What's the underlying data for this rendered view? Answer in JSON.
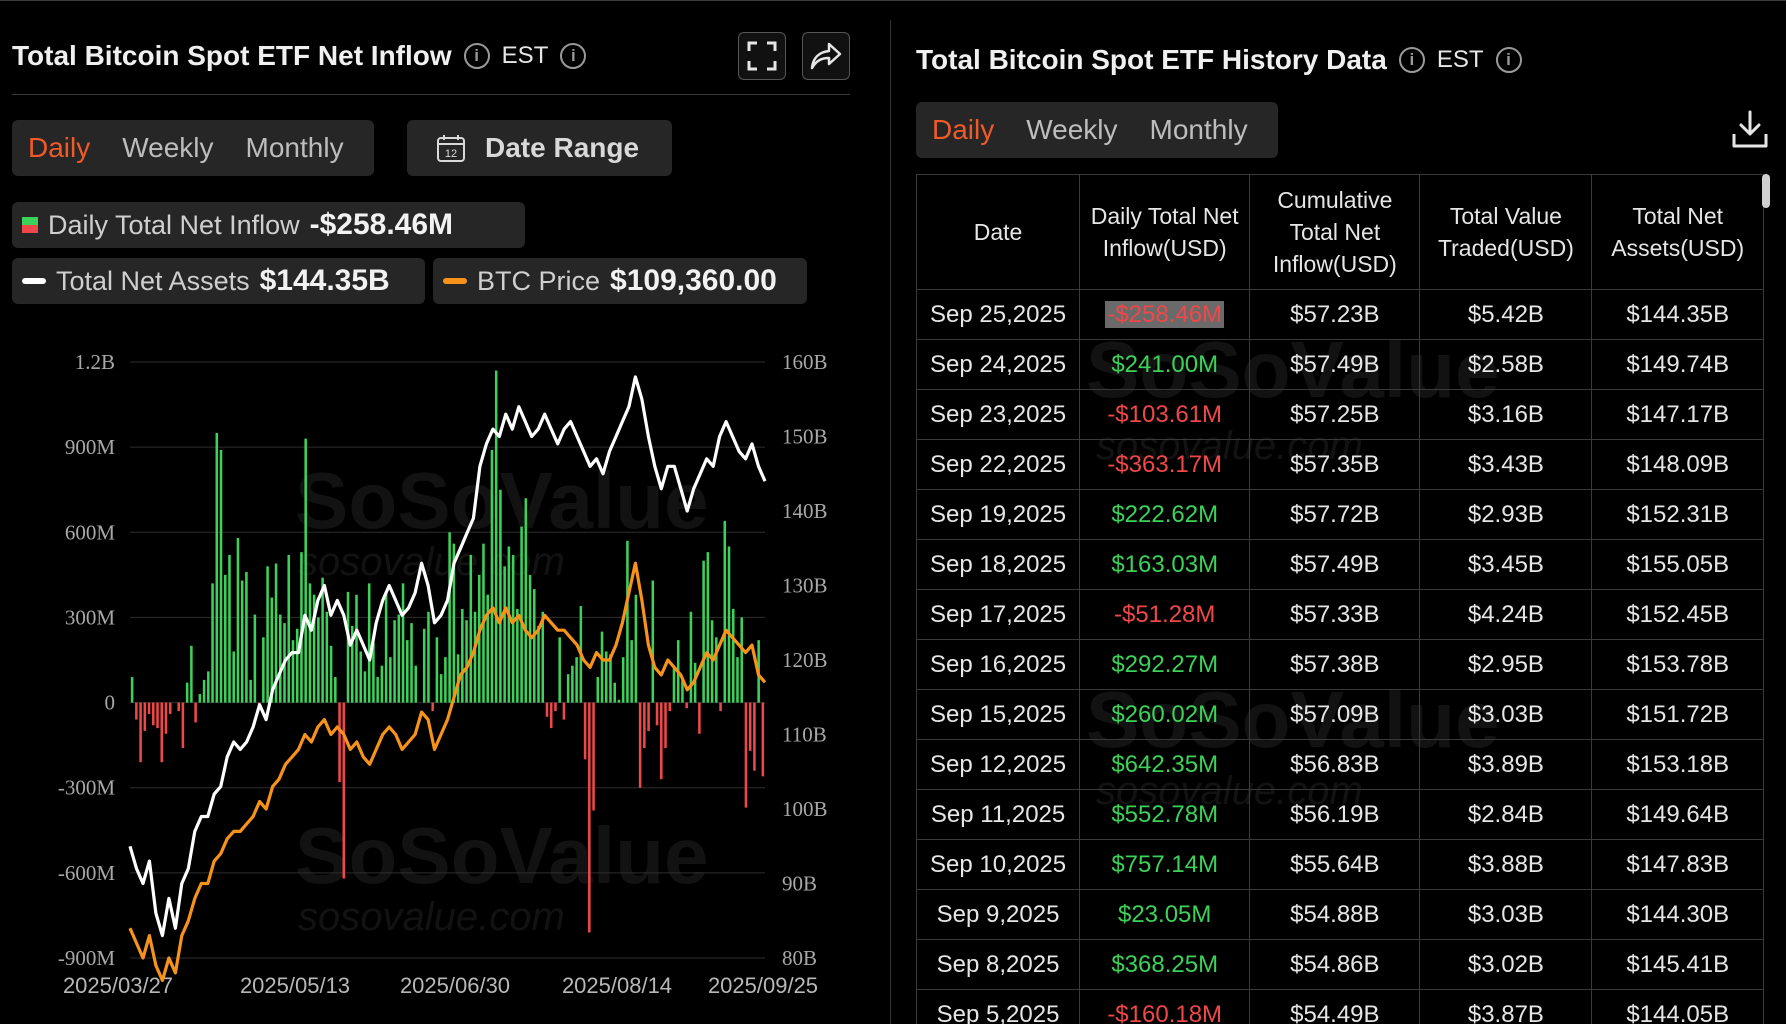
{
  "left": {
    "title": "Total Bitcoin Spot ETF Net Inflow",
    "tz": "EST",
    "tabs": [
      "Daily",
      "Weekly",
      "Monthly"
    ],
    "active_tab": "Daily",
    "date_range_label": "Date Range",
    "calendar_day": "12",
    "pills": {
      "inflow_label": "Daily Total Net Inflow",
      "inflow_value": "-$258.46M",
      "assets_label": "Total Net Assets",
      "assets_value": "$144.35B",
      "price_label": "BTC Price",
      "price_value": "$109,360.00"
    },
    "watermark": {
      "brand": "SoSoValue",
      "url": "sosovalue.com"
    }
  },
  "colors": {
    "accent": "#f05a28",
    "positive": "#3cd25a",
    "negative": "#f04848",
    "assets_line": "#ffffff",
    "price_line": "#f7931a"
  },
  "chart_data": {
    "type": "bar+line",
    "x_ticks": [
      "2025/03/27",
      "2025/05/13",
      "2025/06/30",
      "2025/08/14",
      "2025/09/25"
    ],
    "left_axis": {
      "ticks": [
        "1.2B",
        "900M",
        "600M",
        "300M",
        "0",
        "-300M",
        "-600M",
        "-900M"
      ],
      "ylim": [
        -900,
        1200
      ],
      "unit": "M"
    },
    "right_axis": {
      "ticks": [
        "160B",
        "150B",
        "140B",
        "130B",
        "120B",
        "110B",
        "100B",
        "90B",
        "80B"
      ],
      "ylim": [
        80,
        160
      ],
      "unit": "B"
    },
    "series": [
      {
        "kind": "bar",
        "values": [
          90,
          -60,
          -210,
          -100,
          -40,
          -80,
          -90,
          -210,
          -110,
          -40,
          0,
          -30,
          -160,
          70,
          200,
          -70,
          30,
          80,
          110,
          420,
          950,
          890,
          450,
          520,
          180,
          580,
          430,
          460,
          80,
          310,
          -20,
          230,
          480,
          370,
          490,
          310,
          280,
          520,
          220,
          260,
          530,
          930,
          420,
          380,
          300,
          440,
          320,
          200,
          90,
          -280,
          -620,
          390,
          270,
          380,
          180,
          110,
          420,
          210,
          90,
          130,
          390,
          160,
          290,
          310,
          420,
          220,
          280,
          130,
          0,
          260,
          320,
          -30,
          230,
          100,
          160,
          600,
          560,
          170,
          330,
          290,
          520,
          320,
          450,
          560,
          380,
          890,
          1170,
          750,
          480,
          550,
          520,
          330,
          620,
          720,
          450,
          400,
          270,
          320,
          -50,
          -90,
          -30,
          230,
          -60,
          100,
          130,
          160,
          340,
          -200,
          -810,
          -380,
          90,
          250,
          180,
          170,
          70,
          10,
          160,
          570,
          220,
          380,
          -300,
          -160,
          -100,
          430,
          -80,
          -270,
          -160,
          -30,
          120,
          220,
          80,
          -20,
          320,
          140,
          -110,
          500,
          530,
          290,
          230,
          -30,
          640,
          550,
          330,
          160,
          300,
          -370,
          -170,
          -240,
          220,
          -260
        ],
        "unit": "M"
      },
      {
        "kind": "line",
        "axis": "right",
        "values": [
          95,
          92,
          90,
          93,
          86,
          83,
          88,
          84,
          90,
          92,
          97,
          99,
          99,
          102,
          103,
          107,
          109,
          108,
          109,
          111,
          114,
          112,
          116,
          118,
          120,
          121,
          121,
          126,
          124,
          128,
          130,
          126,
          128,
          126,
          122,
          124,
          122,
          120,
          125,
          128,
          130,
          128,
          126,
          127,
          129,
          133,
          130,
          125,
          126,
          128,
          133,
          135,
          137,
          139,
          146,
          149,
          151,
          150,
          153,
          151,
          154,
          152,
          150,
          151,
          153,
          151,
          149,
          151,
          152,
          150,
          148,
          146,
          147,
          145,
          148,
          150,
          152,
          154,
          158,
          155,
          150,
          146,
          143,
          146,
          146,
          143,
          140,
          143,
          145,
          147,
          146,
          150,
          152,
          150,
          148,
          147,
          149,
          146,
          144
        ],
        "unit": "B"
      },
      {
        "kind": "line",
        "axis": "right",
        "values": [
          84,
          82,
          80,
          83,
          79,
          77,
          80,
          78,
          83,
          85,
          88,
          90,
          90,
          93,
          94,
          96,
          97,
          97,
          98,
          99,
          101,
          100,
          103,
          104,
          106,
          107,
          108,
          110,
          109,
          111,
          112,
          110,
          111,
          110,
          108,
          109,
          107,
          106,
          108,
          110,
          111,
          110,
          108,
          109,
          110,
          113,
          112,
          108,
          110,
          112,
          115,
          118,
          119,
          121,
          124,
          126,
          127,
          125,
          127,
          125,
          126,
          124,
          123,
          124,
          126,
          125,
          124,
          124,
          123,
          122,
          120,
          119,
          121,
          120,
          120,
          122,
          125,
          129,
          133,
          128,
          122,
          119,
          118,
          120,
          119,
          118,
          116,
          117,
          119,
          121,
          120,
          122,
          124,
          123,
          122,
          121,
          122,
          118,
          117
        ],
        "unit": "B"
      }
    ]
  },
  "right": {
    "title": "Total Bitcoin Spot ETF History Data",
    "tz": "EST",
    "tabs": [
      "Daily",
      "Weekly",
      "Monthly"
    ],
    "active_tab": "Daily",
    "headers": [
      "Date",
      "Daily Total Net Inflow(USD)",
      "Cumulative Total Net Inflow(USD)",
      "Total Value Traded(USD)",
      "Total Net Assets(USD)"
    ],
    "rows": [
      {
        "date": "Sep 25,2025",
        "inflow": "-$258.46M",
        "sign": "neg",
        "cum": "$57.23B",
        "traded": "$5.42B",
        "assets": "$144.35B",
        "hl": true
      },
      {
        "date": "Sep 24,2025",
        "inflow": "$241.00M",
        "sign": "pos",
        "cum": "$57.49B",
        "traded": "$2.58B",
        "assets": "$149.74B"
      },
      {
        "date": "Sep 23,2025",
        "inflow": "-$103.61M",
        "sign": "neg",
        "cum": "$57.25B",
        "traded": "$3.16B",
        "assets": "$147.17B"
      },
      {
        "date": "Sep 22,2025",
        "inflow": "-$363.17M",
        "sign": "neg",
        "cum": "$57.35B",
        "traded": "$3.43B",
        "assets": "$148.09B"
      },
      {
        "date": "Sep 19,2025",
        "inflow": "$222.62M",
        "sign": "pos",
        "cum": "$57.72B",
        "traded": "$2.93B",
        "assets": "$152.31B"
      },
      {
        "date": "Sep 18,2025",
        "inflow": "$163.03M",
        "sign": "pos",
        "cum": "$57.49B",
        "traded": "$3.45B",
        "assets": "$155.05B"
      },
      {
        "date": "Sep 17,2025",
        "inflow": "-$51.28M",
        "sign": "neg",
        "cum": "$57.33B",
        "traded": "$4.24B",
        "assets": "$152.45B"
      },
      {
        "date": "Sep 16,2025",
        "inflow": "$292.27M",
        "sign": "pos",
        "cum": "$57.38B",
        "traded": "$2.95B",
        "assets": "$153.78B"
      },
      {
        "date": "Sep 15,2025",
        "inflow": "$260.02M",
        "sign": "pos",
        "cum": "$57.09B",
        "traded": "$3.03B",
        "assets": "$151.72B"
      },
      {
        "date": "Sep 12,2025",
        "inflow": "$642.35M",
        "sign": "pos",
        "cum": "$56.83B",
        "traded": "$3.89B",
        "assets": "$153.18B"
      },
      {
        "date": "Sep 11,2025",
        "inflow": "$552.78M",
        "sign": "pos",
        "cum": "$56.19B",
        "traded": "$2.84B",
        "assets": "$149.64B"
      },
      {
        "date": "Sep 10,2025",
        "inflow": "$757.14M",
        "sign": "pos",
        "cum": "$55.64B",
        "traded": "$3.88B",
        "assets": "$147.83B"
      },
      {
        "date": "Sep 9,2025",
        "inflow": "$23.05M",
        "sign": "pos",
        "cum": "$54.88B",
        "traded": "$3.03B",
        "assets": "$144.30B"
      },
      {
        "date": "Sep 8,2025",
        "inflow": "$368.25M",
        "sign": "pos",
        "cum": "$54.86B",
        "traded": "$3.02B",
        "assets": "$145.41B"
      },
      {
        "date": "Sep 5,2025",
        "inflow": "-$160.18M",
        "sign": "neg",
        "cum": "$54.49B",
        "traded": "$3.87B",
        "assets": "$144.05B"
      }
    ]
  }
}
